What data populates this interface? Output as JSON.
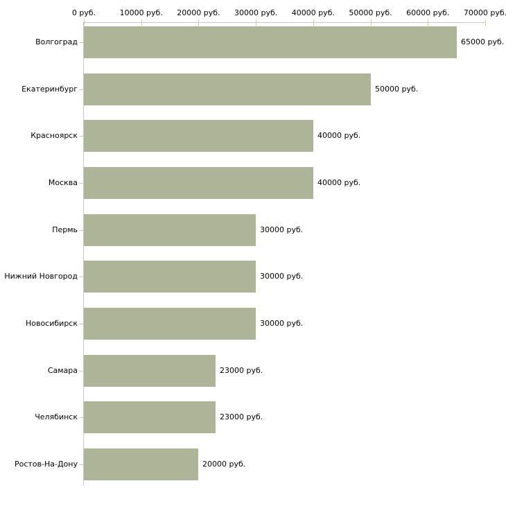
{
  "chart_data": {
    "type": "bar",
    "orientation": "horizontal",
    "title": "",
    "xlabel": "",
    "ylabel": "",
    "unit": "руб.",
    "categories": [
      "Волгоград",
      "Екатеринбург",
      "Красноярск",
      "Москва",
      "Пермь",
      "Нижний Новгород",
      "Новосибирск",
      "Самара",
      "Челябинск",
      "Ростов-На-Дону"
    ],
    "values": [
      65000,
      50000,
      40000,
      40000,
      30000,
      30000,
      30000,
      23000,
      23000,
      20000
    ],
    "value_labels": [
      "65000 руб.",
      "50000 руб.",
      "40000 руб.",
      "40000 руб.",
      "30000 руб.",
      "30000 руб.",
      "30000 руб.",
      "23000 руб.",
      "23000 руб.",
      "20000 руб."
    ],
    "x_tick_values": [
      0,
      10000,
      20000,
      30000,
      40000,
      50000,
      60000,
      70000
    ],
    "x_tick_labels": [
      "0 руб.",
      "10000 руб.",
      "20000 руб.",
      "30000 руб.",
      "40000 руб.",
      "50000 руб.",
      "60000 руб.",
      "70000 руб."
    ],
    "xlim": [
      0,
      70000
    ],
    "grid": false,
    "legend": null,
    "colors": {
      "bar": "#adb497",
      "axis_line": "#c6c6c6",
      "tick_mark": "#cccc99",
      "text": "#000000",
      "background": "#ffffff"
    }
  }
}
